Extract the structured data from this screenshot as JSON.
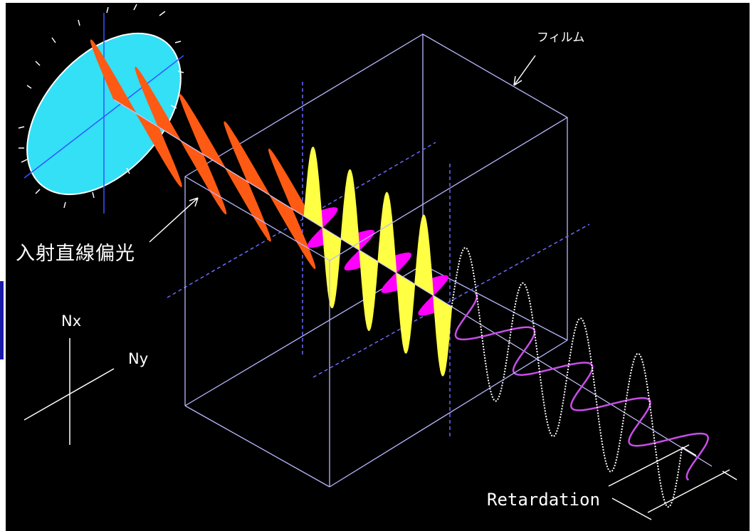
{
  "labels": {
    "film": "フィルム",
    "incident_light": "入射直線偏光",
    "nx": "Nx",
    "ny": "Ny",
    "retardation": "Retardation"
  },
  "colors": {
    "background": "#000000",
    "disc": "#33e0f5",
    "incident_wave": "#ff5a14",
    "x_wave_in_film": "#ffff44",
    "y_wave_in_film": "#ff00ff",
    "x_wave_exit": "#ffffff",
    "y_wave_exit": "#c84ee8",
    "film_box": "#b8b8ff",
    "labels": "#ffffff"
  }
}
